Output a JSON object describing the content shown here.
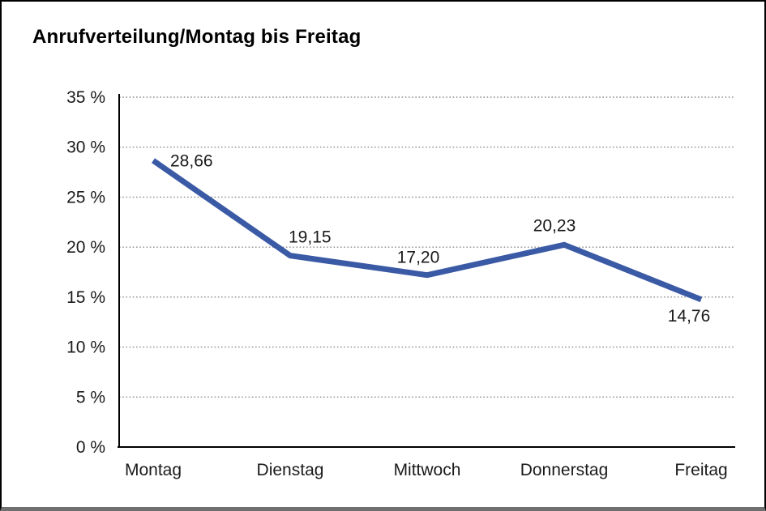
{
  "window": {
    "background": "#ffffff",
    "border_color": "#000000",
    "bottom_edge_color": "#707070"
  },
  "title": "Anrufverteilung/Montag bis Freitag",
  "chart_data": {
    "type": "line",
    "title": "Anrufverteilung/Montag bis Freitag",
    "categories": [
      "Montag",
      "Dienstag",
      "Mittwoch",
      "Donnerstag",
      "Freitag"
    ],
    "series": [
      {
        "name": "Anrufverteilung",
        "values": [
          28.66,
          19.15,
          17.2,
          20.23,
          14.76
        ],
        "value_labels": [
          "28,66",
          "19,15",
          "17,20",
          "20,23",
          "14,76"
        ],
        "color": "#3B5AA5",
        "line_width": 7
      }
    ],
    "xlabel": "",
    "ylabel": "",
    "ylim": [
      0,
      35
    ],
    "y_tick_step": 5,
    "y_tick_labels": [
      "0 %",
      "5 %",
      "10 %",
      "15 %",
      "20 %",
      "25 %",
      "30 %",
      "35 %"
    ],
    "grid": "horizontal-dotted",
    "grid_color": "#8c8c8c",
    "axis_color": "#000000",
    "legend_position": "none"
  }
}
